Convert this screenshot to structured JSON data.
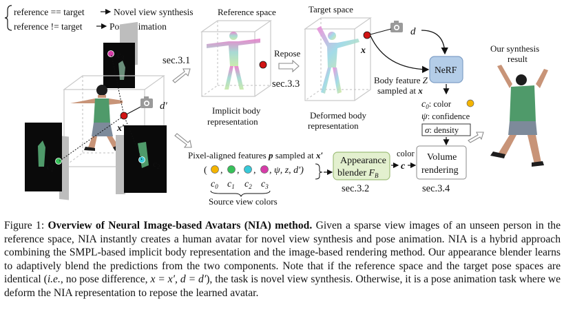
{
  "legend": {
    "line1_pre": "reference == target",
    "line1_post": "Novel view synthesis",
    "line2_pre": "reference != target",
    "line2_post": "Pose animation"
  },
  "labels": {
    "reference_space": "Reference space",
    "target_space": "Target space",
    "sec31": "sec.3.1",
    "repose": "Repose",
    "sec33": "sec.3.3",
    "implicit_body_1": "Implicit body",
    "implicit_body_2": "representation",
    "deformed_body_1": "Deformed body",
    "deformed_body_2": "representation",
    "nerf": "NeRF",
    "body_feature_1": "Body feature",
    "body_feature_sym": "Z",
    "body_feature_2": "sampled at",
    "d_label": "d",
    "dprime_label": "d′",
    "x_label": "x",
    "xprime_label": "x′",
    "c0_color": ": color",
    "psi_conf": ": confidence",
    "sigma_density": ": density",
    "our_synthesis_1": "Our synthesis",
    "our_synthesis_2": "result",
    "pixel_aligned": "Pixel-aligned features",
    "p_sym": "p",
    "sampled_at": "sampled at",
    "tuple_tail": ", ψ, z, d′)",
    "c0": "c",
    "c1": "c",
    "c2": "c",
    "c3": "c",
    "source_view_colors": "Source view colors",
    "appearance_blender_1": "Appearance",
    "appearance_blender_2": "blender",
    "fb": "F",
    "color": "color",
    "c_bold": "c",
    "volume_rendering_1": "Volume",
    "volume_rendering_2": "rendering",
    "sec32": "sec.3.2",
    "sec34": "sec.3.4"
  },
  "colors": {
    "c0": "#f4b400",
    "c1": "#37c05a",
    "c2": "#38c9d8",
    "c3": "#d63ca8",
    "point_red": "#d11414",
    "blender_bg": "#e3f0cf",
    "blender_border": "#9fbe7a",
    "nerf_bg": "#b4cde8",
    "nerf_border": "#7f9fc6",
    "arrow_gray": "#8a8a8a"
  },
  "caption": {
    "figure_label": "Figure 1:",
    "bold_title": "Overview of Neural Image-based Avatars (NIA) method.",
    "line1_tail": "Given a sparse view images of an",
    "line2": "unseen person in the reference space, NIA instantly creates a human avatar for novel view synthesis and",
    "line3": "pose animation. NIA is a hybrid approach combining the SMPL-based implicit body representation and the",
    "line4": "image-based rendering method. Our appearance blender learns to adaptively blend the predictions from the two",
    "line5_a": "components. Note that if the reference space and the target pose spaces are identical (",
    "line5_ie": "i.e.",
    "line5_b": ", no pose difference,",
    "line6_math": "x = x′, d = d′",
    "line6_rest": "), the task is novel view synthesis. Otherwise, it is a pose animation task where we deform the",
    "line7": "NIA representation to repose the learned avatar."
  }
}
